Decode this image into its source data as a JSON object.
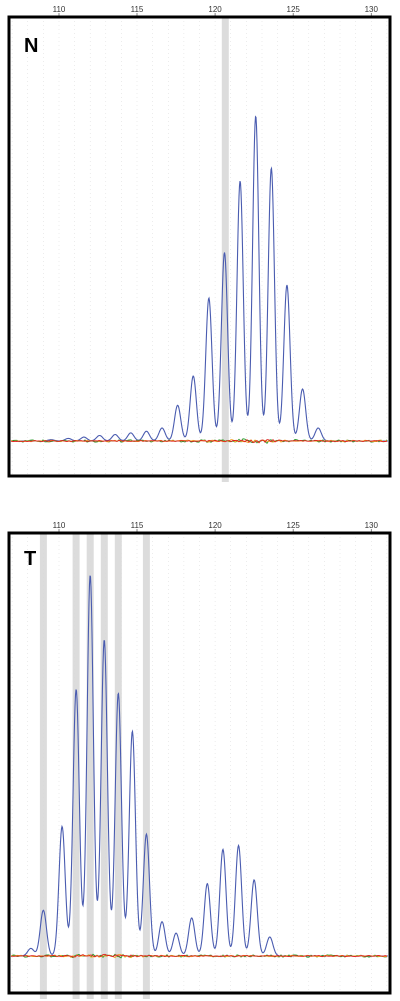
{
  "colors": {
    "background": "#ffffff",
    "frame": "#000000",
    "grid": "#d9d9d9",
    "highlight": "#dcdcdc",
    "blue_trace": "#4a5cb0",
    "red_trace": "#e02020",
    "green_trace": "#2a9a2a",
    "orange_trace": "#f0a020"
  },
  "chart_data": [
    {
      "type": "line",
      "title": "N",
      "xlabel": "",
      "ylabel": "",
      "xlim": [
        106.8,
        131.2
      ],
      "ylim": [
        0,
        1.05
      ],
      "x_ticks": [
        110,
        115,
        120,
        125,
        130
      ],
      "grid": true,
      "highlight_bands": [
        120.65
      ],
      "peaks": [
        {
          "x": 109.5,
          "y": 0.004
        },
        {
          "x": 110.6,
          "y": 0.008
        },
        {
          "x": 111.6,
          "y": 0.012
        },
        {
          "x": 112.6,
          "y": 0.017
        },
        {
          "x": 113.6,
          "y": 0.02
        },
        {
          "x": 114.6,
          "y": 0.025
        },
        {
          "x": 115.6,
          "y": 0.03
        },
        {
          "x": 116.6,
          "y": 0.04
        },
        {
          "x": 117.6,
          "y": 0.11
        },
        {
          "x": 118.6,
          "y": 0.2
        },
        {
          "x": 119.6,
          "y": 0.44
        },
        {
          "x": 120.6,
          "y": 0.58
        },
        {
          "x": 121.6,
          "y": 0.8
        },
        {
          "x": 122.6,
          "y": 1.0
        },
        {
          "x": 123.6,
          "y": 0.84
        },
        {
          "x": 124.6,
          "y": 0.48
        },
        {
          "x": 125.6,
          "y": 0.16
        },
        {
          "x": 126.6,
          "y": 0.04
        }
      ]
    },
    {
      "type": "line",
      "title": "T",
      "xlabel": "",
      "ylabel": "",
      "xlim": [
        106.8,
        131.2
      ],
      "ylim": [
        0,
        1.05
      ],
      "x_ticks": [
        110,
        115,
        120,
        125,
        130
      ],
      "grid": true,
      "highlight_bands": [
        109.0,
        111.1,
        112.0,
        112.9,
        113.8,
        115.6
      ],
      "peaks": [
        {
          "x": 108.2,
          "y": 0.02
        },
        {
          "x": 109.0,
          "y": 0.12
        },
        {
          "x": 110.2,
          "y": 0.34
        },
        {
          "x": 111.1,
          "y": 0.7
        },
        {
          "x": 112.0,
          "y": 1.0
        },
        {
          "x": 112.9,
          "y": 0.83
        },
        {
          "x": 113.8,
          "y": 0.69
        },
        {
          "x": 114.7,
          "y": 0.59
        },
        {
          "x": 115.6,
          "y": 0.32
        },
        {
          "x": 116.6,
          "y": 0.09
        },
        {
          "x": 117.5,
          "y": 0.06
        },
        {
          "x": 118.5,
          "y": 0.1
        },
        {
          "x": 119.5,
          "y": 0.19
        },
        {
          "x": 120.5,
          "y": 0.28
        },
        {
          "x": 121.5,
          "y": 0.29
        },
        {
          "x": 122.5,
          "y": 0.2
        },
        {
          "x": 123.5,
          "y": 0.05
        }
      ]
    }
  ]
}
